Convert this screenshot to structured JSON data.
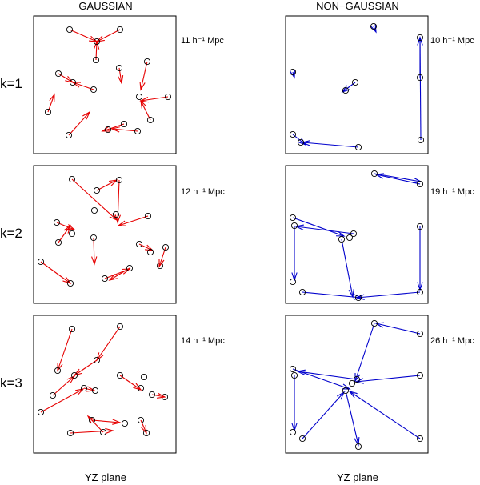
{
  "column_titles": {
    "left": "GAUSSIAN",
    "right": "NON−GAUSSIAN"
  },
  "row_labels": [
    "k=1",
    "k=2",
    "k=3"
  ],
  "scale_labels": {
    "gaussian": [
      "11 h⁻¹ Mpc",
      "12 h⁻¹ Mpc",
      "14 h⁻¹ Mpc"
    ],
    "nongaussian": [
      "10 h⁻¹ Mpc",
      "19 h⁻¹ Mpc",
      "26 h⁻¹ Mpc"
    ]
  },
  "x_labels": {
    "left": "YZ plane",
    "right": "YZ plane"
  },
  "colors": {
    "gaussian": "#e60000",
    "nongaussian": "#0000cc",
    "points": "#000000"
  }
}
